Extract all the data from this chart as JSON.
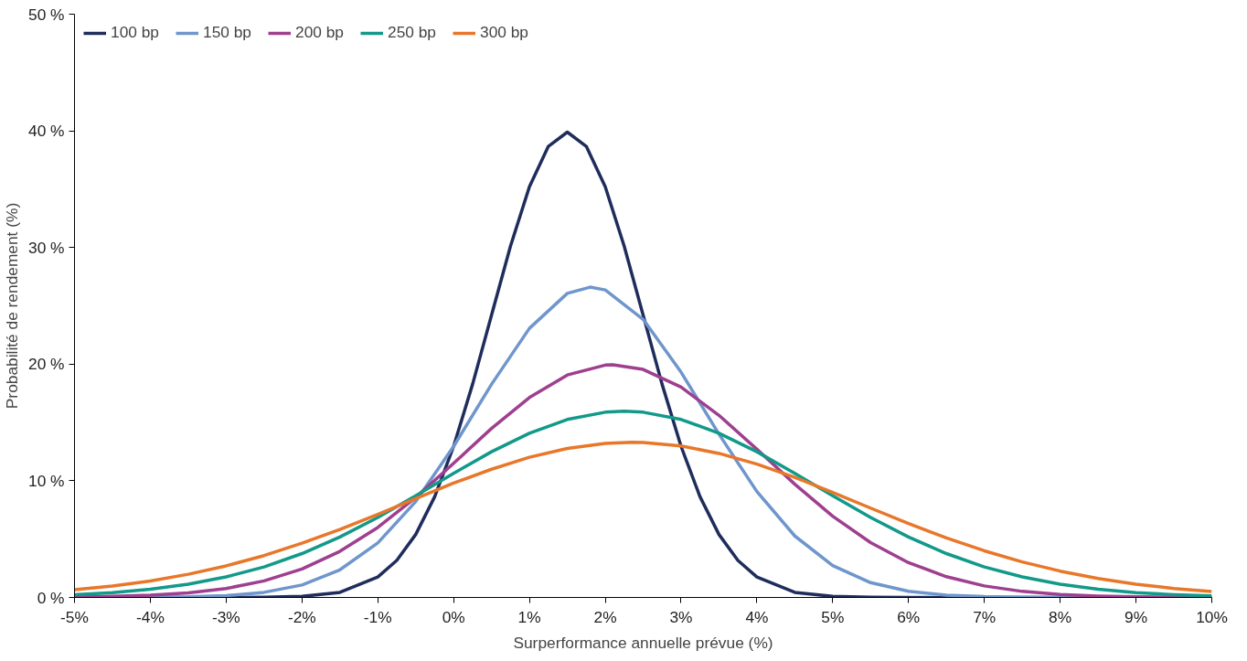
{
  "chart_data": {
    "type": "line",
    "xlabel": "Surperformance annuelle prévue (%)",
    "ylabel": "Probabilité de rendement (%)",
    "xlim": [
      -5,
      10
    ],
    "ylim": [
      0,
      50
    ],
    "xticks": [
      {
        "value": -5,
        "label": "-5%"
      },
      {
        "value": -4,
        "label": "-4%"
      },
      {
        "value": -3,
        "label": "-3%"
      },
      {
        "value": -2,
        "label": "-2%"
      },
      {
        "value": -1,
        "label": "-1%"
      },
      {
        "value": 0,
        "label": "0%"
      },
      {
        "value": 1,
        "label": "1%"
      },
      {
        "value": 2,
        "label": "2%"
      },
      {
        "value": 3,
        "label": "3%"
      },
      {
        "value": 4,
        "label": "4%"
      },
      {
        "value": 5,
        "label": "5%"
      },
      {
        "value": 6,
        "label": "6%"
      },
      {
        "value": 7,
        "label": "7%"
      },
      {
        "value": 8,
        "label": "8%"
      },
      {
        "value": 9,
        "label": "9%"
      },
      {
        "value": 10,
        "label": "10%"
      }
    ],
    "yticks": [
      {
        "value": 0,
        "label": "0 %"
      },
      {
        "value": 10,
        "label": "10 %"
      },
      {
        "value": 20,
        "label": "20 %"
      },
      {
        "value": 30,
        "label": "30 %"
      },
      {
        "value": 40,
        "label": "40 %"
      },
      {
        "value": 50,
        "label": "50 %"
      }
    ],
    "grid": false,
    "legend": "top left",
    "marker": "none",
    "line_style": "solid",
    "series": [
      {
        "name": "100 bp",
        "color": "#1f2d5c",
        "x": [
          -5,
          -4.5,
          -4,
          -3.5,
          -3,
          -2.5,
          -2,
          -1.5,
          -1,
          -0.75,
          -0.5,
          -0.25,
          0,
          0.25,
          0.5,
          0.75,
          1,
          1.25,
          1.5,
          1.75,
          2,
          2.25,
          2.5,
          2.75,
          3,
          3.25,
          3.5,
          3.75,
          4,
          4.5,
          5,
          5.5,
          6,
          6.5,
          7,
          7.5,
          8,
          8.5,
          9,
          9.5,
          10
        ],
        "values": [
          0,
          0,
          0,
          0,
          0,
          0.01,
          0.09,
          0.44,
          1.75,
          3.17,
          5.4,
          8.63,
          12.95,
          18.27,
          24.2,
          30.11,
          35.21,
          38.67,
          39.89,
          38.67,
          35.21,
          30.11,
          24.2,
          18.27,
          12.95,
          8.63,
          5.4,
          3.17,
          1.75,
          0.44,
          0.09,
          0.01,
          0,
          0,
          0,
          0,
          0,
          0,
          0,
          0,
          0
        ]
      },
      {
        "name": "150 bp",
        "color": "#6f96cc",
        "x": [
          -5,
          -4.5,
          -4,
          -3.5,
          -3,
          -2.5,
          -2,
          -1.5,
          -1,
          -0.5,
          0,
          0.5,
          1,
          1.5,
          1.8,
          2,
          2.5,
          3,
          3.5,
          4,
          4.5,
          5,
          5.5,
          6,
          6.5,
          7,
          7.5,
          8,
          8.5,
          9,
          9.5,
          10
        ],
        "values": [
          0,
          0,
          0.02,
          0.05,
          0.16,
          0.44,
          1.07,
          2.37,
          4.67,
          8.22,
          12.95,
          18.27,
          23.07,
          26.07,
          26.6,
          26.36,
          23.84,
          19.31,
          14.0,
          9.08,
          5.27,
          2.74,
          1.27,
          0.53,
          0.2,
          0.07,
          0.02,
          0,
          0,
          0,
          0,
          0
        ]
      },
      {
        "name": "200 bp",
        "color": "#9e3f8f",
        "x": [
          -5,
          -4.5,
          -4,
          -3.5,
          -3,
          -2.5,
          -2,
          -1.5,
          -1,
          -0.5,
          0,
          0.5,
          1,
          1.5,
          2,
          2.1,
          2.5,
          3,
          3.5,
          4,
          4.5,
          5,
          5.5,
          6,
          6.5,
          7,
          7.5,
          8,
          8.5,
          9,
          9.5,
          10
        ],
        "values": [
          0.04,
          0.09,
          0.19,
          0.4,
          0.77,
          1.42,
          2.44,
          3.95,
          6.0,
          8.57,
          11.5,
          14.49,
          17.14,
          19.07,
          19.92,
          19.95,
          19.55,
          18.03,
          15.61,
          12.71,
          9.71,
          6.97,
          4.7,
          2.98,
          1.78,
          0.99,
          0.52,
          0.26,
          0.12,
          0.05,
          0.02,
          0.01
        ]
      },
      {
        "name": "250 bp",
        "color": "#12998a",
        "x": [
          -5,
          -4.5,
          -4,
          -3.5,
          -3,
          -2.5,
          -2,
          -1.5,
          -1,
          -0.5,
          0,
          0.5,
          1,
          1.5,
          2,
          2.25,
          2.5,
          3,
          3.5,
          4,
          4.5,
          5,
          5.5,
          6,
          6.5,
          7,
          7.5,
          8,
          8.5,
          9,
          9.5,
          10
        ],
        "values": [
          0.24,
          0.42,
          0.7,
          1.13,
          1.76,
          2.62,
          3.76,
          5.18,
          6.86,
          8.72,
          10.64,
          12.49,
          14.08,
          15.26,
          15.88,
          15.96,
          15.88,
          15.26,
          14.08,
          12.49,
          10.64,
          8.72,
          6.86,
          5.18,
          3.76,
          2.62,
          1.76,
          1.13,
          0.7,
          0.42,
          0.24,
          0.13
        ]
      },
      {
        "name": "300 bp",
        "color": "#e8772a",
        "x": [
          -5,
          -4.5,
          -4,
          -3.5,
          -3,
          -2.5,
          -2,
          -1.5,
          -1,
          -0.5,
          0,
          0.5,
          1,
          1.5,
          2,
          2.35,
          2.5,
          3,
          3.5,
          4,
          4.5,
          5,
          5.5,
          6,
          6.5,
          7,
          7.5,
          8,
          8.5,
          9,
          9.5,
          10
        ],
        "values": [
          0.66,
          0.98,
          1.41,
          1.99,
          2.71,
          3.59,
          4.65,
          5.83,
          7.13,
          8.47,
          9.8,
          10.99,
          12.02,
          12.78,
          13.21,
          13.3,
          13.28,
          12.99,
          12.35,
          11.43,
          10.29,
          9.01,
          7.66,
          6.34,
          5.11,
          4.0,
          3.05,
          2.26,
          1.63,
          1.14,
          0.77,
          0.51
        ]
      }
    ]
  }
}
